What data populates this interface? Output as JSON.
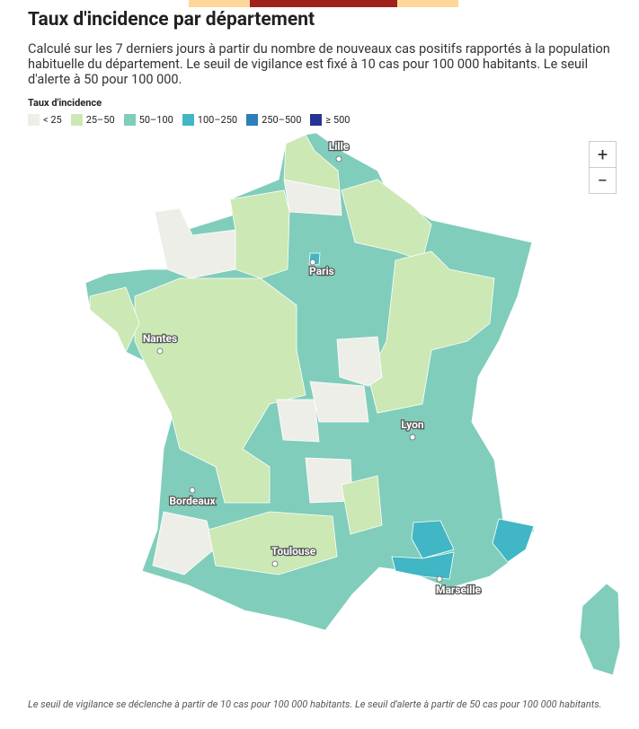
{
  "header": {
    "title": "Taux d'incidence par département",
    "subtitle": "Calculé sur les 7 derniers jours à partir du nombre de nouveaux cas positifs rapportés à la population habituelle du département. Le seuil de vigilance est fixé à 10 cas pour 100 000 habitants. Le seuil d'alerte à 50 pour 100 000."
  },
  "legend": {
    "title": "Taux d'incidence",
    "items": [
      {
        "label": "< 25",
        "color": "#eeeee9"
      },
      {
        "label": "25–50",
        "color": "#cbe8b5"
      },
      {
        "label": "50–100",
        "color": "#80cdbb"
      },
      {
        "label": "100–250",
        "color": "#41b6c4"
      },
      {
        "label": "250–500",
        "color": "#2c7fb8"
      },
      {
        "label": "≥ 500",
        "color": "#253494"
      }
    ]
  },
  "map": {
    "cities": [
      "Lille",
      "Paris",
      "Nantes",
      "Lyon",
      "Bordeaux",
      "Toulouse",
      "Marseille"
    ]
  },
  "controls": {
    "zoom_in": "+",
    "zoom_out": "−"
  },
  "footer": {
    "note": "Le seuil de vigilance se déclenche à partir de 10 cas pour 100 000 habitants. Le seuil d'alerte à partir de 50 cas pour 100 000 habitants."
  }
}
